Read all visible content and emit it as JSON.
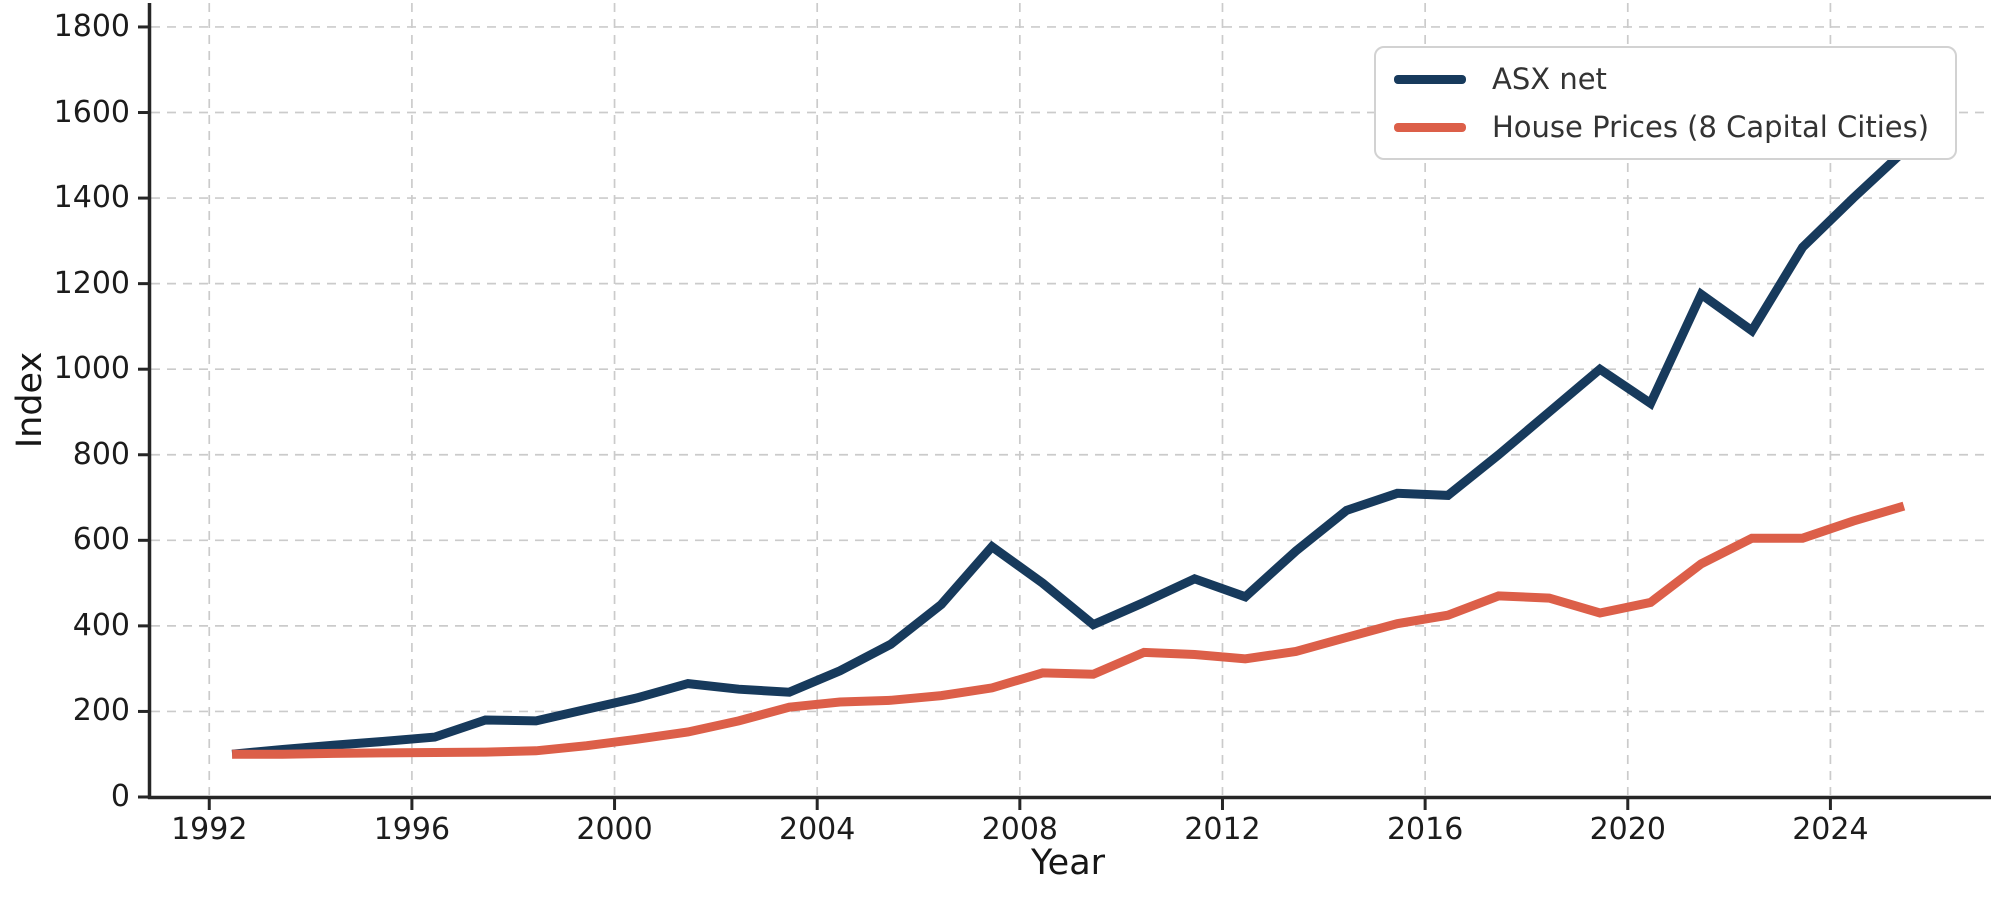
{
  "figure": {
    "xlabel": "Year",
    "ylabel": "Index"
  },
  "legend": {
    "entries": [
      {
        "label": "ASX net",
        "color": "#173a5c"
      },
      {
        "label": "House Prices (8 Capital Cities)",
        "color": "#dc5f49"
      }
    ]
  },
  "colors": {
    "asx_line": "#173a5c",
    "house_line": "#dc5f49",
    "gridline": "#cbcbcb",
    "spine": "#262626",
    "tick": "#262626"
  },
  "chart_data": {
    "type": "line",
    "title": "",
    "xlabel": "Year",
    "ylabel": "Index",
    "x": [
      1992,
      1993,
      1994,
      1995,
      1996,
      1997,
      1998,
      1999,
      2000,
      2001,
      2002,
      2003,
      2004,
      2005,
      2006,
      2007,
      2008,
      2009,
      2010,
      2011,
      2012,
      2013,
      2014,
      2015,
      2016,
      2017,
      2018,
      2019,
      2020,
      2021,
      2022,
      2023,
      2024,
      2025
    ],
    "series": [
      {
        "name": "ASX net",
        "color": "#173a5c",
        "values": [
          100,
          111,
          121,
          130,
          140,
          180,
          178,
          205,
          232,
          265,
          252,
          245,
          295,
          357,
          450,
          585,
          500,
          403,
          455,
          510,
          468,
          575,
          670,
          710,
          705,
          800,
          900,
          1000,
          920,
          1175,
          1090,
          1285,
          1400,
          1510
        ]
      },
      {
        "name": "House Prices (8 Capital Cities)",
        "color": "#dc5f49",
        "values": [
          100,
          100,
          102,
          103,
          104,
          105,
          108,
          120,
          135,
          152,
          178,
          210,
          222,
          226,
          237,
          255,
          290,
          287,
          338,
          333,
          323,
          340,
          373,
          405,
          425,
          470,
          465,
          430,
          455,
          545,
          605,
          605,
          645,
          680
        ]
      }
    ],
    "x_ticks": [
      1992,
      1996,
      2000,
      2004,
      2008,
      2012,
      2016,
      2020,
      2024
    ],
    "y_ticks": [
      0,
      200,
      400,
      600,
      800,
      1000,
      1200,
      1400,
      1600,
      1800
    ],
    "xlim": [
      1990.85,
      2027.15
    ],
    "ylim": [
      0,
      1856
    ],
    "x_offset": 0.45,
    "grid": true,
    "grid_style": "dashed",
    "legend_position": "upper right"
  }
}
